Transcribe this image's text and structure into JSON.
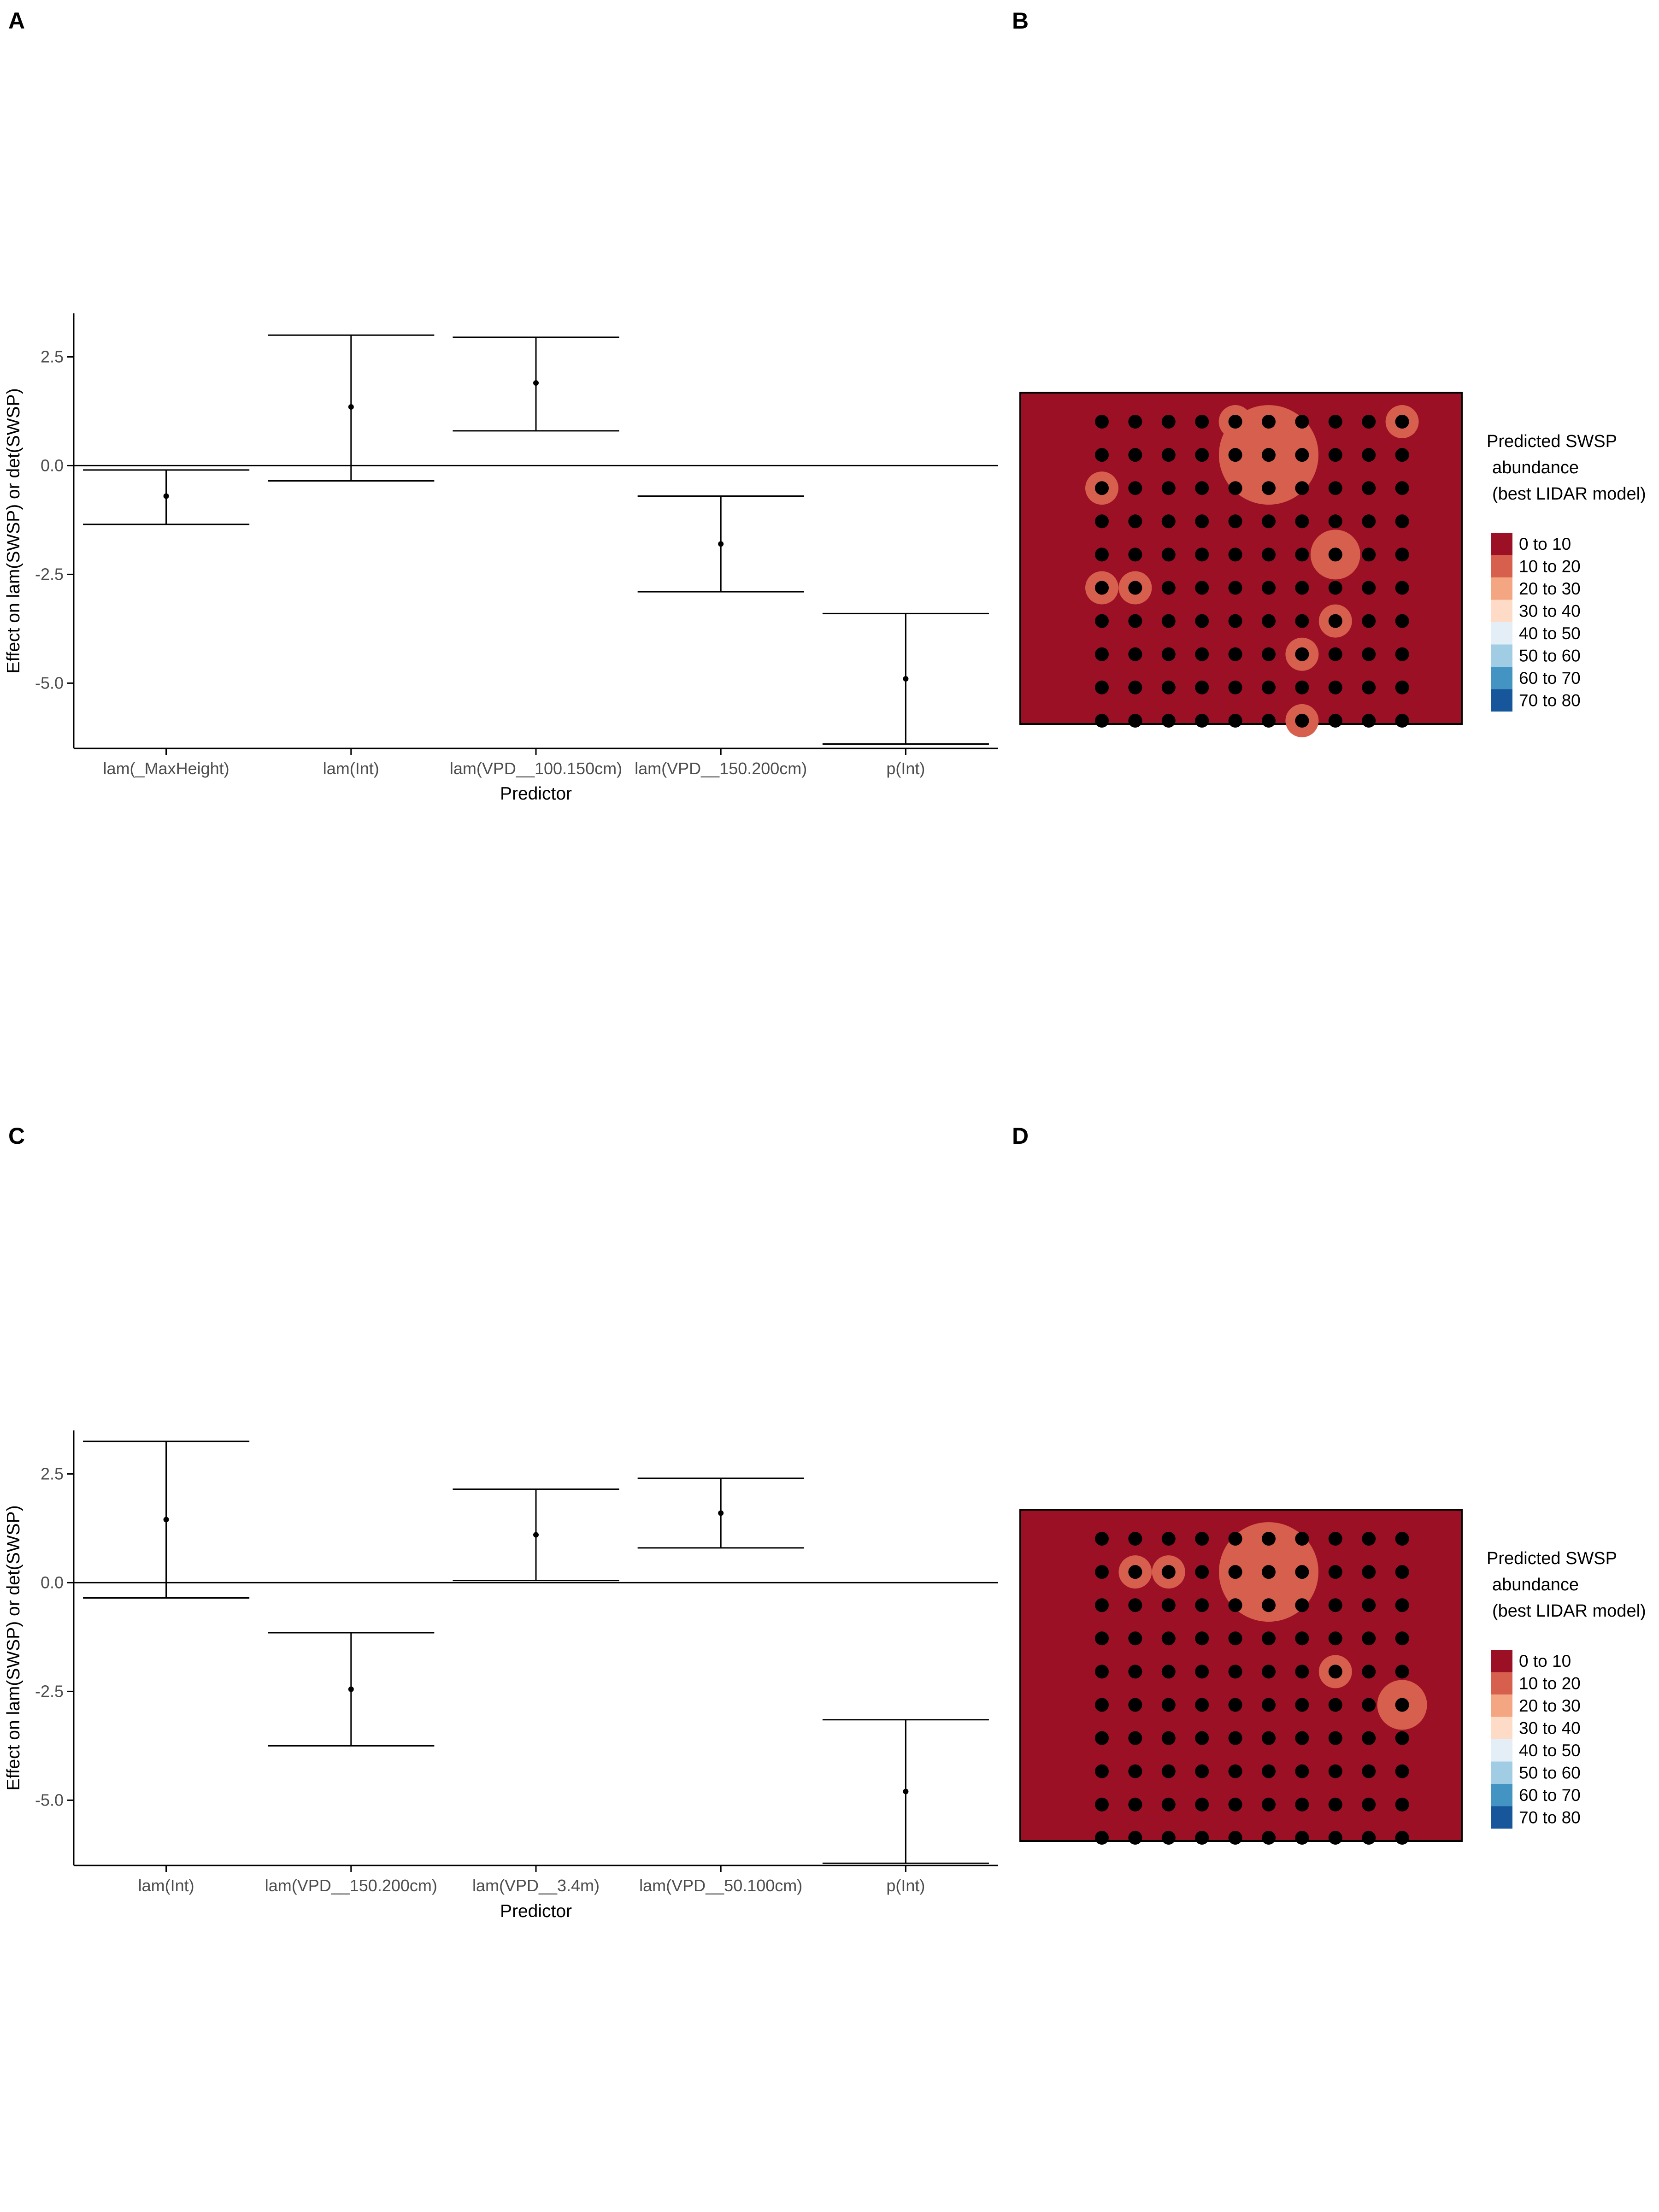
{
  "panels": [
    {
      "letter": "A"
    },
    {
      "letter": "B"
    },
    {
      "letter": "C"
    },
    {
      "letter": "D"
    }
  ],
  "colors": {
    "map_background": "#9b1025",
    "map_border": "#000000",
    "point": "#000000",
    "errorbar": "#000000"
  },
  "chart_data": [
    {
      "panel": "A",
      "type": "errorbar",
      "xlabel": "Predictor",
      "ylabel": "Effect on lam(SWSP) or det(SWSP)",
      "ylim": [
        -6.5,
        3.5
      ],
      "yticks": [
        2.5,
        0.0,
        -2.5,
        -5.0
      ],
      "ytick_labels": [
        "2.5",
        "0.0",
        "-2.5",
        "-5.0"
      ],
      "hline": 0.0,
      "categories": [
        "lam(_MaxHeight)",
        "lam(Int)",
        "lam(VPD__100.150cm)",
        "lam(VPD__150.200cm)",
        "p(Int)"
      ],
      "estimate": [
        -0.7,
        1.35,
        1.9,
        -1.8,
        -4.9
      ],
      "lower": [
        -1.35,
        -0.35,
        0.8,
        -2.9,
        -6.4
      ],
      "upper": [
        -0.1,
        3.0,
        2.95,
        -0.7,
        -3.4
      ]
    },
    {
      "panel": "C",
      "type": "errorbar",
      "xlabel": "Predictor",
      "ylabel": "Effect on lam(SWSP) or det(SWSP)",
      "ylim": [
        -6.5,
        3.5
      ],
      "yticks": [
        2.5,
        0.0,
        -2.5,
        -5.0
      ],
      "ytick_labels": [
        "2.5",
        "0.0",
        "-2.5",
        "-5.0"
      ],
      "hline": 0.0,
      "categories": [
        "lam(Int)",
        "lam(VPD__150.200cm)",
        "lam(VPD__3.4m)",
        "lam(VPD__50.100cm)",
        "p(Int)"
      ],
      "estimate": [
        1.45,
        -2.45,
        1.1,
        1.6,
        -4.8
      ],
      "lower": [
        -0.35,
        -3.75,
        0.05,
        0.8,
        -6.45
      ],
      "upper": [
        3.25,
        -1.15,
        2.15,
        2.4,
        -3.15
      ]
    },
    {
      "panel": "B",
      "type": "heatmap",
      "legend_title": [
        "Predicted SWSP",
        "abundance",
        "(best LIDAR model)"
      ],
      "legend": [
        {
          "label": "0 to 10",
          "color": "#9b1025"
        },
        {
          "label": "10 to 20",
          "color": "#d6604d"
        },
        {
          "label": "20 to 30",
          "color": "#f4a582"
        },
        {
          "label": "30 to 40",
          "color": "#fddbc7"
        },
        {
          "label": "40 to 50",
          "color": "#e3eef6"
        },
        {
          "label": "50 to 60",
          "color": "#a0cde4"
        },
        {
          "label": "60 to 70",
          "color": "#4393c3"
        },
        {
          "label": "70 to 80",
          "color": "#17569a"
        }
      ],
      "grid_cols": 10,
      "grid_rows": 10,
      "hotspots": [
        {
          "col": 4,
          "row": 0,
          "level": 1
        },
        {
          "col": 5,
          "row": 1,
          "level": 5
        },
        {
          "col": 9,
          "row": 0,
          "level": 1
        },
        {
          "col": 0,
          "row": 2,
          "level": 1
        },
        {
          "col": 7,
          "row": 4,
          "level": 2
        },
        {
          "col": 0,
          "row": 5,
          "level": 1
        },
        {
          "col": 1,
          "row": 5,
          "level": 1
        },
        {
          "col": 6,
          "row": 7,
          "level": 1
        },
        {
          "col": 7,
          "row": 6,
          "level": 1
        },
        {
          "col": 6,
          "row": 9,
          "level": 1
        },
        {
          "col": 4,
          "row": 9,
          "level": 0
        }
      ]
    },
    {
      "panel": "D",
      "type": "heatmap",
      "legend_title": [
        "Predicted SWSP",
        "abundance",
        "(best LIDAR model)"
      ],
      "legend": [
        {
          "label": "0 to 10",
          "color": "#9b1025"
        },
        {
          "label": "10 to 20",
          "color": "#d6604d"
        },
        {
          "label": "20 to 30",
          "color": "#f4a582"
        },
        {
          "label": "30 to 40",
          "color": "#fddbc7"
        },
        {
          "label": "40 to 50",
          "color": "#e3eef6"
        },
        {
          "label": "50 to 60",
          "color": "#a0cde4"
        },
        {
          "label": "60 to 70",
          "color": "#4393c3"
        },
        {
          "label": "70 to 80",
          "color": "#17569a"
        }
      ],
      "grid_cols": 10,
      "grid_rows": 10,
      "hotspots": [
        {
          "col": 5,
          "row": 1,
          "level": 5
        },
        {
          "col": 1,
          "row": 1,
          "level": 1
        },
        {
          "col": 2,
          "row": 1,
          "level": 1
        },
        {
          "col": 7,
          "row": 4,
          "level": 1
        },
        {
          "col": 9,
          "row": 5,
          "level": 2
        }
      ]
    }
  ]
}
